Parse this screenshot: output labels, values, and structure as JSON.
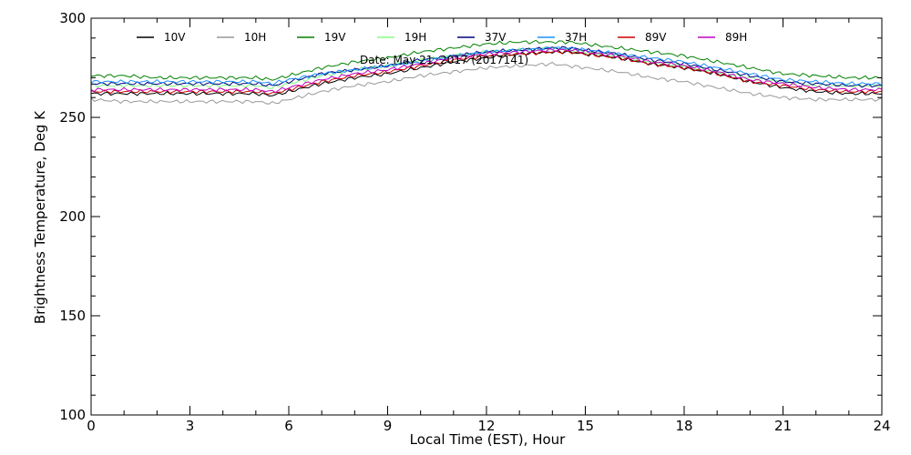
{
  "chart_data": {
    "type": "line",
    "xlabel": "Local Time (EST), Hour",
    "ylabel": "Brightness Temperature, Deg K",
    "xlim": [
      0,
      24
    ],
    "ylim": [
      100,
      300
    ],
    "x_ticks": [
      0,
      3,
      6,
      9,
      12,
      15,
      18,
      21,
      24
    ],
    "y_ticks": [
      100,
      150,
      200,
      250,
      300
    ],
    "grid": false,
    "legend_position": "top",
    "annotation": "Date: May 21, 2017 (2017141)",
    "x": [
      0,
      1,
      2,
      3,
      4,
      5,
      5.5,
      6,
      7,
      8,
      9,
      10,
      11,
      12,
      13,
      14,
      14.5,
      15,
      16,
      17,
      18,
      19,
      20,
      21,
      22,
      23,
      24
    ],
    "series": [
      {
        "name": "10V",
        "color": "#000000",
        "values": [
          262,
          262,
          262,
          262,
          262,
          262,
          261,
          263,
          267,
          270,
          272,
          275,
          278,
          280,
          282,
          283,
          283,
          282,
          280,
          277,
          275,
          272,
          268,
          265,
          263,
          262,
          262
        ]
      },
      {
        "name": "10H",
        "color": "#999999",
        "values": [
          259,
          258,
          258,
          258,
          258,
          258,
          257,
          259,
          263,
          266,
          268,
          271,
          273,
          275,
          276,
          277,
          276,
          275,
          273,
          270,
          268,
          265,
          262,
          260,
          259,
          259,
          259
        ]
      },
      {
        "name": "19V",
        "color": "#008000",
        "values": [
          271,
          271,
          270,
          270,
          270,
          270,
          269,
          271,
          275,
          278,
          280,
          283,
          285,
          287,
          288,
          288,
          288,
          287,
          285,
          283,
          281,
          278,
          275,
          272,
          271,
          270,
          270
        ]
      },
      {
        "name": "19H",
        "color": "#80ff80",
        "values": [
          266,
          266,
          266,
          266,
          266,
          266,
          265,
          267,
          271,
          274,
          276,
          279,
          281,
          283,
          284,
          285,
          284,
          283,
          281,
          278,
          276,
          273,
          270,
          268,
          266,
          266,
          266
        ]
      },
      {
        "name": "37V",
        "color": "#000080",
        "values": [
          267,
          267,
          267,
          267,
          267,
          267,
          266,
          268,
          272,
          274,
          276,
          279,
          281,
          283,
          284,
          285,
          285,
          284,
          282,
          279,
          277,
          274,
          271,
          268,
          267,
          266,
          266
        ]
      },
      {
        "name": "37H",
        "color": "#1e90ff",
        "values": [
          268,
          268,
          268,
          268,
          268,
          268,
          267,
          269,
          272,
          274,
          276,
          278,
          281,
          283,
          284,
          285,
          285,
          284,
          282,
          280,
          278,
          275,
          272,
          269,
          268,
          267,
          267
        ]
      },
      {
        "name": "89V",
        "color": "#cc0000",
        "values": [
          263,
          263,
          263,
          263,
          263,
          263,
          262,
          264,
          268,
          271,
          273,
          276,
          279,
          281,
          282,
          283,
          283,
          282,
          280,
          277,
          275,
          272,
          268,
          266,
          264,
          263,
          263
        ]
      },
      {
        "name": "89H",
        "color": "#c000c0",
        "values": [
          264,
          264,
          264,
          264,
          264,
          264,
          263,
          265,
          269,
          272,
          274,
          277,
          280,
          282,
          283,
          284,
          284,
          283,
          281,
          278,
          276,
          273,
          269,
          267,
          265,
          264,
          264
        ]
      }
    ]
  }
}
